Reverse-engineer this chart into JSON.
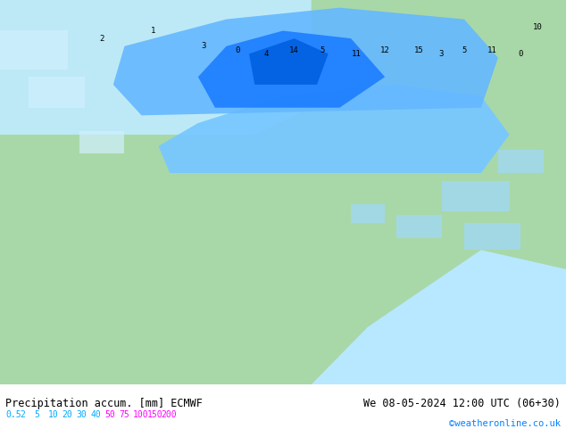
{
  "title_left": "Precipitation accum. [mm] ECMWF",
  "title_right": "We 08-05-2024 12:00 UTC (06+30)",
  "credit": "©weatheronline.co.uk",
  "legend_values": [
    0.5,
    2,
    5,
    10,
    20,
    30,
    40,
    50,
    75,
    100,
    150,
    200
  ],
  "legend_colors": [
    "#c8f0c8",
    "#a0e8a0",
    "#78d878",
    "#50c850",
    "#c8f0ff",
    "#a0d8ff",
    "#78c0ff",
    "#50a8ff",
    "#2890ff",
    "#0070ff",
    "#0040c0",
    "#8000c0"
  ],
  "colorbar_colors": [
    "#c8f5c8",
    "#a8eeaa",
    "#82e082",
    "#50c878",
    "#c2eeff",
    "#96d8ff",
    "#64c0ff",
    "#3aa8ff",
    "#1488ee",
    "#0060e0",
    "#003cbf",
    "#6000a0"
  ],
  "bg_color": "#ffffff",
  "map_bg": "#a8d8a8",
  "sea_color": "#b0e0ff",
  "text_color": "#000000",
  "legend_text_colors": [
    "#00aaff",
    "#00aaff",
    "#00aaff",
    "#00aaff",
    "#00aaff",
    "#00aaff",
    "#00aaff",
    "#ff00ff",
    "#ff00ff",
    "#ff00ff",
    "#ff00ff",
    "#ff00ff"
  ]
}
